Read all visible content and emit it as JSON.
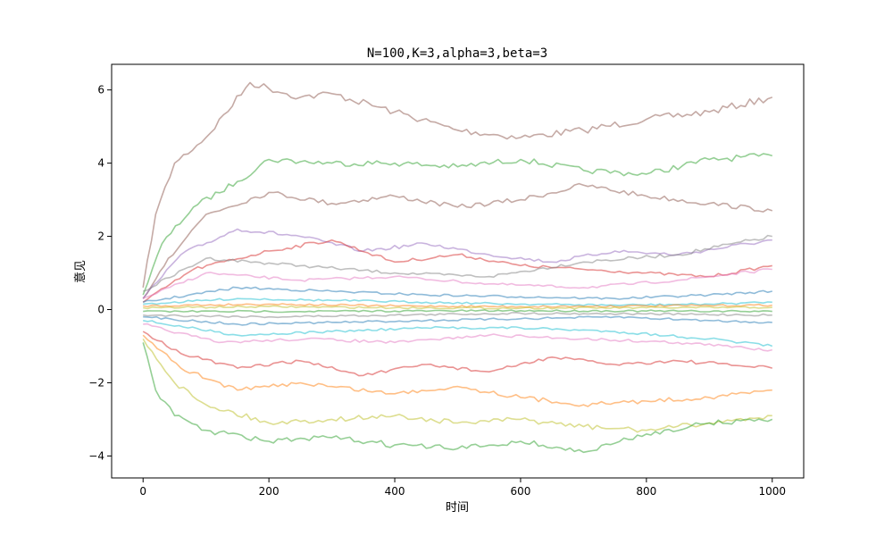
{
  "chart_data": {
    "type": "line",
    "title": "N=100,K=3,alpha=3,beta=3",
    "xlabel": "时间",
    "ylabel": "意见",
    "xlim": [
      -50,
      1050
    ],
    "ylim": [
      -4.6,
      6.7
    ],
    "xticks": [
      0,
      200,
      400,
      600,
      800,
      1000
    ],
    "yticks": [
      -4,
      -2,
      0,
      2,
      4,
      6
    ],
    "grid": false,
    "legend": "none",
    "palette": [
      "#1f77b4",
      "#ff7f0e",
      "#2ca02c",
      "#d62728",
      "#9467bd",
      "#8c564b",
      "#e377c2",
      "#7f7f7f",
      "#bcbd22",
      "#17becf"
    ],
    "series": [
      {
        "color": "#8c564b",
        "x": [
          0,
          20,
          50,
          100,
          170,
          250,
          300,
          400,
          500,
          600,
          700,
          800,
          900,
          1000
        ],
        "y": [
          0.6,
          2.6,
          4.0,
          4.7,
          6.2,
          5.8,
          5.9,
          5.4,
          4.9,
          4.7,
          4.9,
          5.2,
          5.4,
          5.8
        ]
      },
      {
        "color": "#2ca02c",
        "x": [
          0,
          30,
          80,
          150,
          200,
          300,
          400,
          500,
          600,
          700,
          800,
          900,
          1000
        ],
        "y": [
          0.4,
          1.8,
          2.8,
          3.5,
          4.1,
          4.0,
          4.0,
          3.9,
          4.1,
          3.8,
          3.7,
          4.1,
          4.2
        ]
      },
      {
        "color": "#8c564b",
        "x": [
          0,
          40,
          100,
          200,
          300,
          400,
          500,
          600,
          700,
          800,
          900,
          1000
        ],
        "y": [
          0.3,
          1.4,
          2.6,
          3.2,
          2.9,
          3.1,
          2.8,
          3.0,
          3.4,
          3.1,
          2.9,
          2.7
        ]
      },
      {
        "color": "#9467bd",
        "x": [
          0,
          60,
          150,
          250,
          350,
          450,
          550,
          650,
          750,
          850,
          1000
        ],
        "y": [
          0.3,
          1.5,
          2.2,
          2.0,
          1.6,
          1.8,
          1.5,
          1.3,
          1.6,
          1.5,
          1.9
        ]
      },
      {
        "color": "#d62728",
        "x": [
          0,
          80,
          200,
          300,
          400,
          500,
          600,
          700,
          800,
          900,
          1000
        ],
        "y": [
          0.2,
          1.1,
          1.6,
          1.9,
          1.3,
          1.5,
          1.2,
          1.1,
          1.0,
          0.9,
          1.2
        ]
      },
      {
        "color": "#7f7f7f",
        "x": [
          0,
          100,
          250,
          400,
          550,
          700,
          850,
          1000
        ],
        "y": [
          0.5,
          1.4,
          1.2,
          1.0,
          0.9,
          1.3,
          1.5,
          2.0
        ]
      },
      {
        "color": "#e377c2",
        "x": [
          0,
          100,
          250,
          400,
          550,
          700,
          850,
          1000
        ],
        "y": [
          0.3,
          1.0,
          0.8,
          0.9,
          0.7,
          0.6,
          0.8,
          1.1
        ]
      },
      {
        "color": "#1f77b4",
        "x": [
          0,
          150,
          300,
          450,
          600,
          750,
          900,
          1000
        ],
        "y": [
          0.2,
          0.6,
          0.5,
          0.4,
          0.35,
          0.3,
          0.4,
          0.5
        ]
      },
      {
        "color": "#17becf",
        "x": [
          0,
          150,
          300,
          450,
          600,
          750,
          900,
          1000
        ],
        "y": [
          0.15,
          0.3,
          0.25,
          0.2,
          0.15,
          0.12,
          0.15,
          0.2
        ]
      },
      {
        "color": "#ff7f0e",
        "x": [
          0,
          200,
          400,
          600,
          800,
          1000
        ],
        "y": [
          0.1,
          0.15,
          0.1,
          0.08,
          0.1,
          0.12
        ]
      },
      {
        "color": "#bcbd22",
        "x": [
          0,
          200,
          400,
          600,
          800,
          1000
        ],
        "y": [
          0.05,
          0.08,
          0.05,
          0.04,
          0.05,
          0.06
        ]
      },
      {
        "color": "#2ca02c",
        "x": [
          0,
          200,
          400,
          600,
          800,
          1000
        ],
        "y": [
          -0.05,
          -0.05,
          -0.04,
          -0.03,
          -0.04,
          -0.05
        ]
      },
      {
        "color": "#7f7f7f",
        "x": [
          0,
          200,
          400,
          600,
          800,
          1000
        ],
        "y": [
          -0.15,
          -0.2,
          -0.15,
          -0.1,
          -0.12,
          -0.15
        ]
      },
      {
        "color": "#1f77b4",
        "x": [
          0,
          150,
          300,
          450,
          600,
          750,
          900,
          1000
        ],
        "y": [
          -0.2,
          -0.4,
          -0.35,
          -0.3,
          -0.25,
          -0.2,
          -0.3,
          -0.35
        ]
      },
      {
        "color": "#17becf",
        "x": [
          0,
          150,
          300,
          450,
          600,
          750,
          900,
          1000
        ],
        "y": [
          -0.3,
          -0.7,
          -0.6,
          -0.5,
          -0.5,
          -0.6,
          -0.8,
          -1.0
        ]
      },
      {
        "color": "#e377c2",
        "x": [
          0,
          120,
          260,
          400,
          550,
          700,
          850,
          1000
        ],
        "y": [
          -0.4,
          -0.9,
          -0.8,
          -0.9,
          -0.7,
          -0.8,
          -0.9,
          -1.1
        ]
      },
      {
        "color": "#d62728",
        "x": [
          0,
          60,
          150,
          250,
          350,
          450,
          550,
          650,
          750,
          850,
          1000
        ],
        "y": [
          -0.6,
          -1.2,
          -1.6,
          -1.4,
          -1.8,
          -1.5,
          -1.7,
          -1.3,
          -1.5,
          -1.4,
          -1.6
        ]
      },
      {
        "color": "#ff7f0e",
        "x": [
          0,
          60,
          150,
          250,
          400,
          500,
          600,
          700,
          800,
          900,
          1000
        ],
        "y": [
          -0.7,
          -1.6,
          -2.2,
          -2.0,
          -2.3,
          -2.1,
          -2.4,
          -2.6,
          -2.5,
          -2.4,
          -2.2
        ]
      },
      {
        "color": "#bcbd22",
        "x": [
          0,
          50,
          100,
          200,
          300,
          400,
          500,
          600,
          700,
          800,
          900,
          1000
        ],
        "y": [
          -0.8,
          -2.0,
          -2.6,
          -3.1,
          -3.0,
          -2.9,
          -3.1,
          -3.0,
          -3.2,
          -3.3,
          -3.1,
          -2.9
        ]
      },
      {
        "color": "#2ca02c",
        "x": [
          0,
          20,
          50,
          100,
          200,
          300,
          400,
          500,
          600,
          700,
          800,
          900,
          1000
        ],
        "y": [
          -0.9,
          -2.2,
          -2.9,
          -3.3,
          -3.6,
          -3.5,
          -3.7,
          -3.8,
          -3.6,
          -3.9,
          -3.4,
          -3.1,
          -3.0
        ]
      }
    ]
  }
}
